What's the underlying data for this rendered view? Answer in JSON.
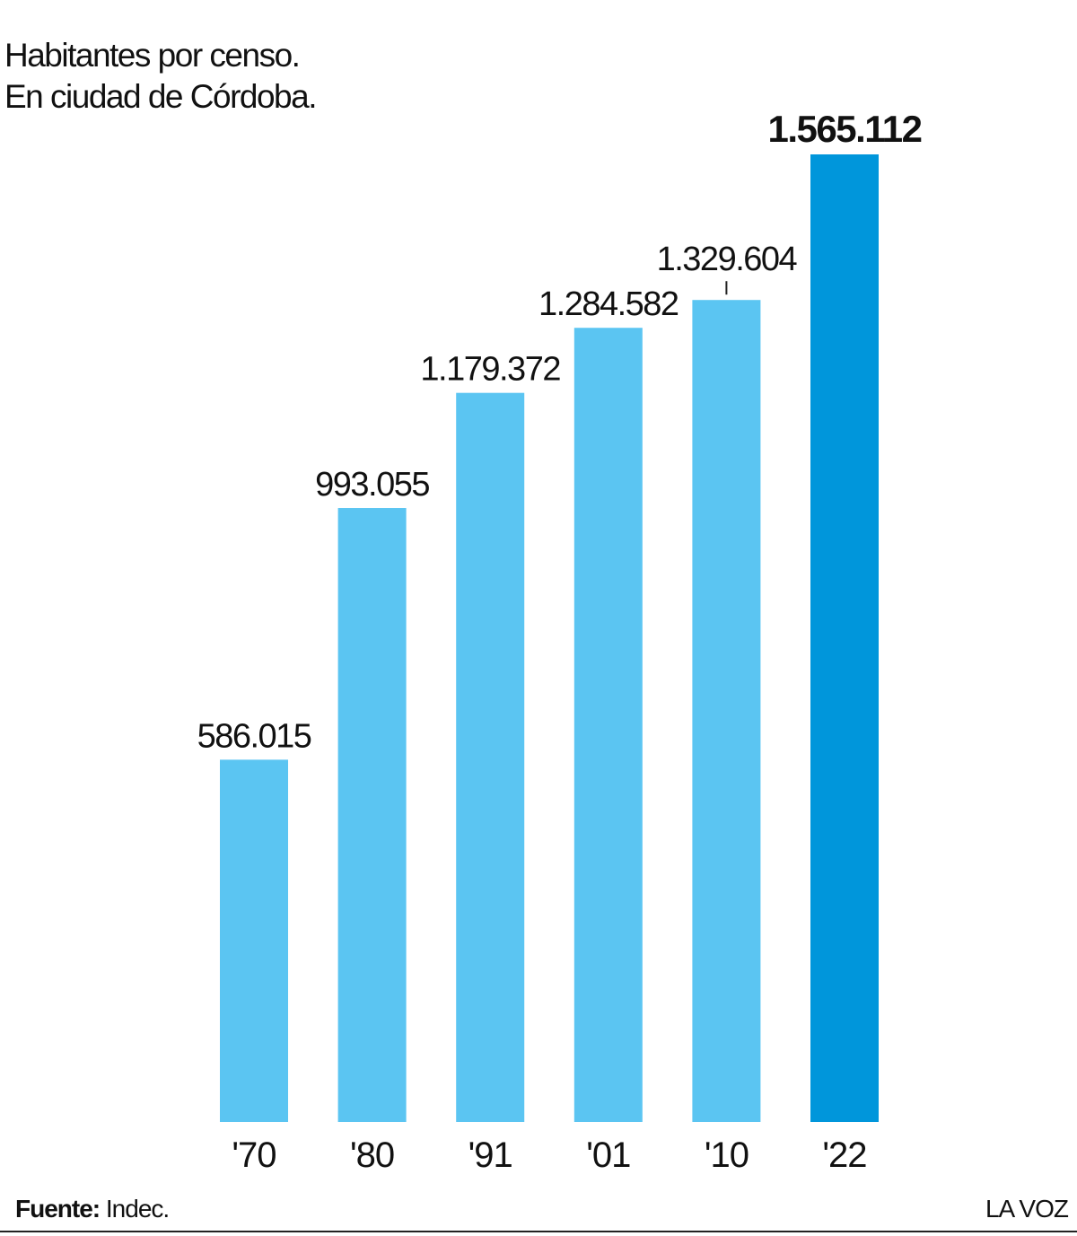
{
  "chart_data": {
    "type": "bar",
    "title": "Habitantes por censo.",
    "subtitle": "En ciudad de Córdoba.",
    "categories": [
      "'70",
      "'80",
      "'91",
      "'01",
      "'10",
      "'22"
    ],
    "values": [
      586015,
      993055,
      1179372,
      1284582,
      1329604,
      1565112
    ],
    "value_labels": [
      "586.015",
      "993.055",
      "1.179.372",
      "1.284.582",
      "1.329.604",
      "1.565.112"
    ],
    "colors": [
      "#5bc5f2",
      "#5bc5f2",
      "#5bc5f2",
      "#5bc5f2",
      "#5bc5f2",
      "#0096db"
    ],
    "bold_labels": [
      false,
      false,
      false,
      false,
      false,
      true
    ],
    "ylim": [
      0,
      1565112
    ],
    "source_label": "Fuente:",
    "source": "Indec.",
    "brand": "LA VOZ"
  }
}
